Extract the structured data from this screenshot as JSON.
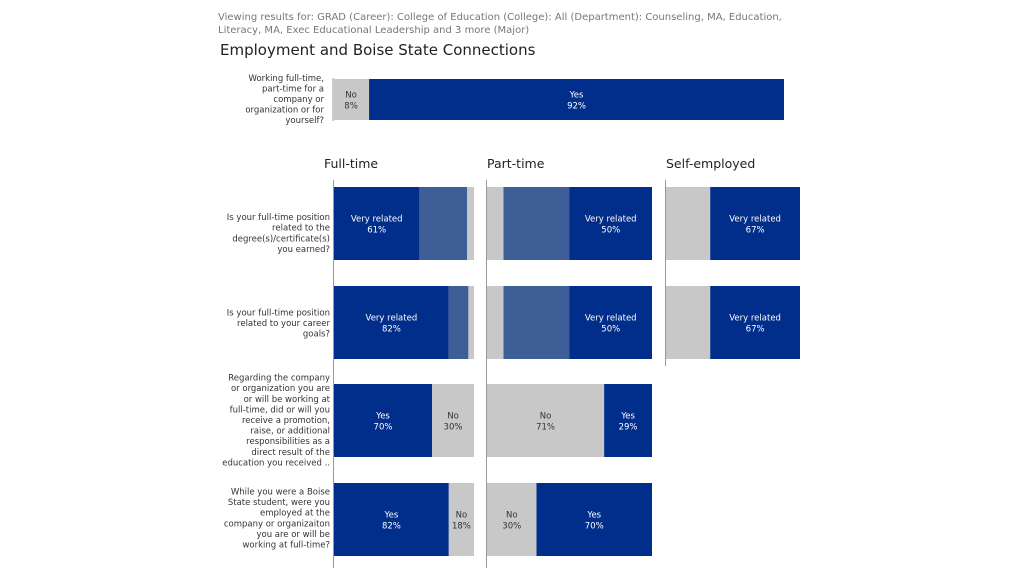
{
  "header": {
    "filter_text": "Viewing results for: GRAD (Career): College of Education (College): All (Department): Counseling, MA, Education, Literacy, MA, Exec Educational Leadership and 3 more (Major)",
    "title": "Employment and Boise State Connections"
  },
  "colors": {
    "dark_blue": "#002E8A",
    "mid_blue": "#3D5E96",
    "gray": "#C8C8C8",
    "divider": "#999999"
  },
  "chart_data": {
    "type": "bar",
    "orientation": "horizontal-stacked-percent",
    "top_question": {
      "question_lines": [
        "Working full-time,",
        "part-time for a",
        "company or",
        "organization or for",
        "yourself?"
      ],
      "segments": [
        {
          "label": "No",
          "value": 8,
          "value_text": "8%",
          "color": "gray"
        },
        {
          "label": "Yes",
          "value": 92,
          "value_text": "92%",
          "color": "dark_blue"
        }
      ]
    },
    "columns": [
      "Full-time",
      "Part-time",
      "Self-employed"
    ],
    "rows": [
      {
        "question_lines": [
          "Is your full-time position",
          "related to the",
          "degree(s)/certificate(s)",
          "you earned?"
        ],
        "cells": [
          [
            {
              "label": "Very related",
              "value": 61,
              "value_text": "61%",
              "color": "dark_blue"
            },
            {
              "label": "",
              "value": 34,
              "value_text": "",
              "color": "mid_blue"
            },
            {
              "label": "",
              "value": 5,
              "value_text": "",
              "color": "gray"
            }
          ],
          [
            {
              "label": "",
              "value": 10,
              "value_text": "",
              "color": "gray"
            },
            {
              "label": "",
              "value": 40,
              "value_text": "",
              "color": "mid_blue"
            },
            {
              "label": "Very related",
              "value": 50,
              "value_text": "50%",
              "color": "dark_blue"
            }
          ],
          [
            {
              "label": "",
              "value": 33,
              "value_text": "",
              "color": "gray"
            },
            {
              "label": "Very related",
              "value": 67,
              "value_text": "67%",
              "color": "dark_blue"
            }
          ]
        ]
      },
      {
        "question_lines": [
          "Is your full-time position",
          "related to your career",
          "goals?"
        ],
        "cells": [
          [
            {
              "label": "Very related",
              "value": 82,
              "value_text": "82%",
              "color": "dark_blue"
            },
            {
              "label": "",
              "value": 14,
              "value_text": "",
              "color": "mid_blue"
            },
            {
              "label": "",
              "value": 4,
              "value_text": "",
              "color": "gray"
            }
          ],
          [
            {
              "label": "",
              "value": 10,
              "value_text": "",
              "color": "gray"
            },
            {
              "label": "",
              "value": 40,
              "value_text": "",
              "color": "mid_blue"
            },
            {
              "label": "Very related",
              "value": 50,
              "value_text": "50%",
              "color": "dark_blue"
            }
          ],
          [
            {
              "label": "",
              "value": 33,
              "value_text": "",
              "color": "gray"
            },
            {
              "label": "Very related",
              "value": 67,
              "value_text": "67%",
              "color": "dark_blue"
            }
          ]
        ]
      },
      {
        "question_lines": [
          "Regarding the company",
          "or organization you are",
          "or will be working at",
          "full-time, did or will you",
          "receive a promotion,",
          "raise, or additional",
          "responsibilities as a",
          "direct result of the",
          "education you received .."
        ],
        "cells": [
          [
            {
              "label": "Yes",
              "value": 70,
              "value_text": "70%",
              "color": "dark_blue"
            },
            {
              "label": "No",
              "value": 30,
              "value_text": "30%",
              "color": "gray"
            }
          ],
          [
            {
              "label": "No",
              "value": 71,
              "value_text": "71%",
              "color": "gray"
            },
            {
              "label": "Yes",
              "value": 29,
              "value_text": "29%",
              "color": "dark_blue"
            }
          ],
          null
        ]
      },
      {
        "question_lines": [
          "While you were a Boise",
          "State student, were you",
          "employed at the",
          "company or organizaiton",
          "you are or will be",
          "working at full-time?"
        ],
        "cells": [
          [
            {
              "label": "Yes",
              "value": 82,
              "value_text": "82%",
              "color": "dark_blue"
            },
            {
              "label": "No",
              "value": 18,
              "value_text": "18%",
              "color": "gray"
            }
          ],
          [
            {
              "label": "No",
              "value": 30,
              "value_text": "30%",
              "color": "gray"
            },
            {
              "label": "Yes",
              "value": 70,
              "value_text": "70%",
              "color": "dark_blue"
            }
          ],
          null
        ]
      }
    ]
  }
}
